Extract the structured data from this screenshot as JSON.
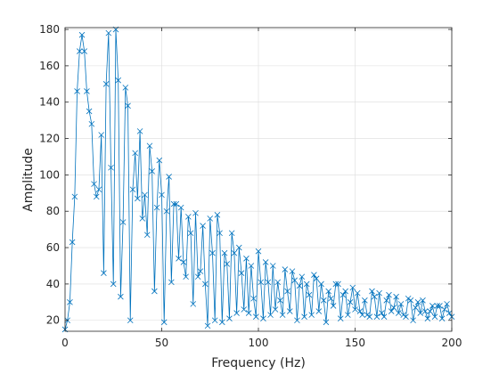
{
  "chart_data": {
    "type": "line",
    "title": "",
    "xlabel": "Frequency (Hz)",
    "ylabel": "Amplitude",
    "xlim": [
      0,
      200
    ],
    "ylim": [
      14,
      181
    ],
    "xticks": [
      0,
      50,
      100,
      150,
      200
    ],
    "yticks": [
      20,
      40,
      60,
      80,
      100,
      120,
      140,
      160,
      180
    ],
    "grid": true,
    "legend": "none",
    "marker": "x",
    "line_color": "#0072bd",
    "series": [
      {
        "x": [
          0,
          1.25,
          2.5,
          3.75,
          5,
          6.25,
          7.5,
          8.75,
          10,
          11.25,
          12.5,
          13.75,
          15,
          16.25,
          17.5,
          18.75,
          20,
          21.25,
          22.5,
          23.75,
          25,
          26.25,
          27.5,
          28.75,
          30,
          31.25,
          32.5,
          33.75,
          35,
          36.25,
          37.5,
          38.75,
          40,
          41.25,
          42.5,
          43.75,
          45,
          46.25,
          47.5,
          48.75,
          50,
          51.25,
          52.5,
          53.75,
          55,
          56.25,
          57.5,
          58.75,
          60,
          61.25,
          62.5,
          63.75,
          65,
          66.25,
          67.5,
          68.75,
          70,
          71.25,
          72.5,
          73.75,
          75,
          76.25,
          77.5,
          78.75,
          80,
          81.25,
          82.5,
          83.75,
          85,
          86.25,
          87.5,
          88.75,
          90,
          91.25,
          92.5,
          93.75,
          95,
          96.25,
          97.5,
          98.75,
          100,
          101.25,
          102.5,
          103.75,
          105,
          106.25,
          107.5,
          108.75,
          110,
          111.25,
          112.5,
          113.75,
          115,
          116.25,
          117.5,
          118.75,
          120,
          121.25,
          122.5,
          123.75,
          125,
          126.25,
          127.5,
          128.75,
          130,
          131.25,
          132.5,
          133.75,
          135,
          136.25,
          137.5,
          138.75,
          140,
          141.25,
          142.5,
          143.75,
          145,
          146.25,
          147.5,
          148.75,
          150,
          151.25,
          152.5,
          153.75,
          155,
          156.25,
          157.5,
          158.75,
          160,
          161.25,
          162.5,
          163.75,
          165,
          166.25,
          167.5,
          168.75,
          170,
          171.25,
          172.5,
          173.75,
          175,
          176.25,
          177.5,
          178.75,
          180,
          181.25,
          182.5,
          183.75,
          185,
          186.25,
          187.5,
          188.75,
          190,
          191.25,
          192.5,
          193.75,
          195,
          196.25,
          197.5,
          198.75,
          200
        ],
        "y": [
          15,
          20,
          30,
          63,
          88,
          146,
          168,
          177,
          168,
          146,
          135,
          128,
          95,
          88,
          92,
          122,
          46,
          150,
          178,
          104,
          40,
          180,
          152,
          33,
          74,
          148,
          138,
          20,
          92,
          112,
          87,
          124,
          76,
          89,
          67,
          116,
          102,
          36,
          82,
          108,
          89,
          19,
          80,
          99,
          41,
          84,
          84,
          54,
          82,
          52,
          44,
          77,
          68,
          29,
          79,
          44,
          47,
          72,
          40,
          17,
          76,
          57,
          20,
          78,
          68,
          19,
          57,
          51,
          21,
          68,
          57,
          24,
          60,
          46,
          26,
          54,
          24,
          50,
          32,
          22,
          58,
          41,
          21,
          52,
          41,
          23,
          50,
          26,
          41,
          31,
          23,
          48,
          36,
          25,
          47,
          42,
          20,
          39,
          44,
          22,
          40,
          34,
          23,
          45,
          43,
          25,
          40,
          31,
          19,
          36,
          32,
          28,
          40,
          40,
          21,
          34,
          36,
          23,
          30,
          38,
          26,
          35,
          25,
          23,
          31,
          23,
          22,
          36,
          33,
          22,
          35,
          24,
          22,
          31,
          34,
          25,
          27,
          33,
          24,
          29,
          23,
          22,
          32,
          31,
          20,
          27,
          30,
          24,
          31,
          25,
          21,
          25,
          28,
          22,
          28,
          28,
          21,
          26,
          29,
          24,
          22
        ]
      }
    ]
  }
}
